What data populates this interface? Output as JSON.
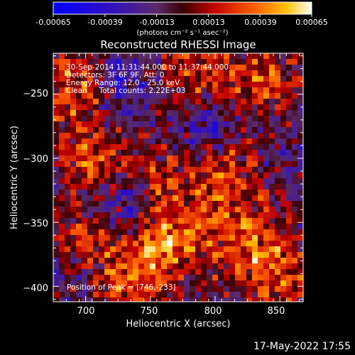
{
  "colorbar": {
    "tick_labels": [
      "-0.00065",
      "-0.00039",
      "-0.00013",
      "0.00013",
      "0.00039",
      "0.00065"
    ],
    "unit_label": "(photons cm⁻² s⁻¹ asec⁻²)",
    "range": [
      -0.00065,
      0.00065
    ]
  },
  "chart_data": {
    "type": "heatmap",
    "title": "Reconstructed RHESSI Image",
    "xlabel": "Heliocentric X (arcsec)",
    "ylabel": "Heliocentric Y (arcsec)",
    "xlim": [
      675,
      868
    ],
    "ylim": [
      -412,
      -218
    ],
    "x_ticks": [
      700,
      750,
      800,
      850
    ],
    "y_ticks": [
      -250,
      -300,
      -350,
      -400
    ],
    "x_tick_labels": [
      "700",
      "750",
      "800",
      "850"
    ],
    "y_tick_labels": [
      "−250",
      "−300",
      "−350",
      "−400"
    ],
    "annotations": [
      "30-Sep-2014 11:31:44.000 to 11:37:44.000",
      "Detectors: 3F 6F 9F, Att: 0",
      "Energy Range: 12.0 - 25.0 keV",
      "Clean     Total counts: 2.22E+03"
    ],
    "peak_label": "Position of Peak = [746,-233]",
    "colormap": "hot-blue diverging"
  },
  "footer": {
    "date": "17-May-2022 17:55"
  }
}
